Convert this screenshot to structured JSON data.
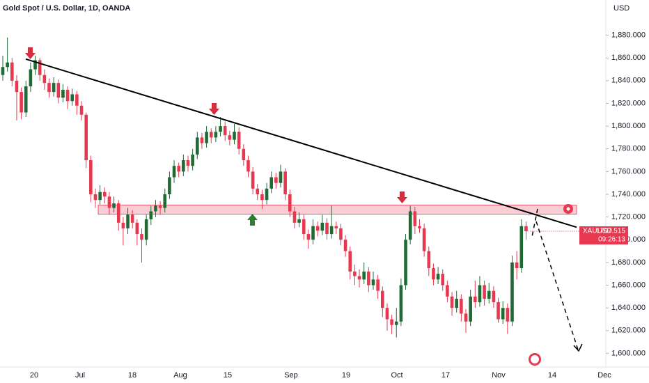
{
  "chart_data": {
    "type": "candlestick",
    "title": "Gold Spot / U.S. Dollar, 1D, OANDA",
    "y_axis_label": "USD",
    "series": [
      {
        "name": "XAUUSD",
        "up_color": "#1e6b34",
        "down_color": "#e8384f",
        "values": [
          [
            1845,
            1862,
            1840,
            1852
          ],
          [
            1852,
            1878,
            1848,
            1856
          ],
          [
            1856,
            1860,
            1835,
            1840
          ],
          [
            1840,
            1845,
            1805,
            1830
          ],
          [
            1830,
            1834,
            1806,
            1812
          ],
          [
            1812,
            1840,
            1808,
            1835
          ],
          [
            1835,
            1856,
            1830,
            1850
          ],
          [
            1850,
            1862,
            1845,
            1858
          ],
          [
            1858,
            1860,
            1840,
            1845
          ],
          [
            1845,
            1850,
            1832,
            1838
          ],
          [
            1838,
            1842,
            1825,
            1830
          ],
          [
            1830,
            1843,
            1826,
            1838
          ],
          [
            1838,
            1841,
            1820,
            1825
          ],
          [
            1825,
            1837,
            1821,
            1832
          ],
          [
            1832,
            1835,
            1815,
            1822
          ],
          [
            1822,
            1833,
            1818,
            1828
          ],
          [
            1828,
            1831,
            1810,
            1818
          ],
          [
            1818,
            1822,
            1805,
            1810
          ],
          [
            1810,
            1812,
            1763,
            1770
          ],
          [
            1770,
            1774,
            1733,
            1740
          ],
          [
            1740,
            1745,
            1728,
            1735
          ],
          [
            1735,
            1748,
            1731,
            1742
          ],
          [
            1742,
            1746,
            1732,
            1738
          ],
          [
            1738,
            1742,
            1722,
            1728
          ],
          [
            1728,
            1738,
            1724,
            1732
          ],
          [
            1732,
            1735,
            1708,
            1715
          ],
          [
            1715,
            1720,
            1695,
            1710
          ],
          [
            1710,
            1728,
            1705,
            1722
          ],
          [
            1722,
            1726,
            1710,
            1715
          ],
          [
            1715,
            1718,
            1695,
            1705
          ],
          [
            1705,
            1710,
            1680,
            1700
          ],
          [
            1700,
            1722,
            1695,
            1718
          ],
          [
            1718,
            1730,
            1713,
            1725
          ],
          [
            1725,
            1735,
            1720,
            1730
          ],
          [
            1730,
            1734,
            1722,
            1728
          ],
          [
            1728,
            1745,
            1724,
            1740
          ],
          [
            1740,
            1760,
            1736,
            1755
          ],
          [
            1755,
            1770,
            1750,
            1765
          ],
          [
            1765,
            1768,
            1755,
            1760
          ],
          [
            1760,
            1775,
            1756,
            1770
          ],
          [
            1770,
            1774,
            1760,
            1765
          ],
          [
            1765,
            1780,
            1761,
            1775
          ],
          [
            1775,
            1795,
            1771,
            1790
          ],
          [
            1790,
            1794,
            1780,
            1785
          ],
          [
            1785,
            1800,
            1781,
            1795
          ],
          [
            1795,
            1798,
            1785,
            1790
          ],
          [
            1790,
            1800,
            1786,
            1795
          ],
          [
            1795,
            1808,
            1791,
            1800
          ],
          [
            1800,
            1804,
            1787,
            1792
          ],
          [
            1792,
            1796,
            1783,
            1788
          ],
          [
            1788,
            1802,
            1784,
            1795
          ],
          [
            1795,
            1799,
            1775,
            1780
          ],
          [
            1780,
            1784,
            1765,
            1770
          ],
          [
            1770,
            1774,
            1755,
            1760
          ],
          [
            1760,
            1764,
            1740,
            1745
          ],
          [
            1745,
            1749,
            1735,
            1740
          ],
          [
            1740,
            1744,
            1727,
            1735
          ],
          [
            1735,
            1750,
            1731,
            1745
          ],
          [
            1745,
            1760,
            1741,
            1755
          ],
          [
            1755,
            1759,
            1745,
            1750
          ],
          [
            1750,
            1766,
            1746,
            1760
          ],
          [
            1760,
            1763,
            1735,
            1740
          ],
          [
            1740,
            1744,
            1720,
            1725
          ],
          [
            1725,
            1729,
            1710,
            1715
          ],
          [
            1715,
            1724,
            1711,
            1718
          ],
          [
            1718,
            1722,
            1700,
            1705
          ],
          [
            1705,
            1709,
            1692,
            1700
          ],
          [
            1700,
            1718,
            1696,
            1712
          ],
          [
            1712,
            1716,
            1703,
            1708
          ],
          [
            1708,
            1722,
            1704,
            1715
          ],
          [
            1715,
            1719,
            1700,
            1705
          ],
          [
            1705,
            1730,
            1701,
            1712
          ],
          [
            1712,
            1716,
            1705,
            1710
          ],
          [
            1710,
            1714,
            1695,
            1700
          ],
          [
            1700,
            1704,
            1685,
            1690
          ],
          [
            1690,
            1694,
            1665,
            1672
          ],
          [
            1672,
            1678,
            1660,
            1668
          ],
          [
            1668,
            1674,
            1658,
            1665
          ],
          [
            1665,
            1680,
            1661,
            1672
          ],
          [
            1672,
            1676,
            1654,
            1660
          ],
          [
            1660,
            1672,
            1656,
            1665
          ],
          [
            1665,
            1669,
            1648,
            1655
          ],
          [
            1655,
            1659,
            1632,
            1640
          ],
          [
            1640,
            1644,
            1620,
            1630
          ],
          [
            1630,
            1634,
            1617,
            1625
          ],
          [
            1625,
            1640,
            1614,
            1628
          ],
          [
            1628,
            1666,
            1624,
            1660
          ],
          [
            1660,
            1705,
            1656,
            1700
          ],
          [
            1700,
            1730,
            1696,
            1725
          ],
          [
            1725,
            1729,
            1705,
            1712
          ],
          [
            1712,
            1718,
            1706,
            1710
          ],
          [
            1710,
            1714,
            1685,
            1690
          ],
          [
            1690,
            1694,
            1668,
            1675
          ],
          [
            1675,
            1679,
            1660,
            1665
          ],
          [
            1665,
            1676,
            1661,
            1670
          ],
          [
            1670,
            1674,
            1655,
            1660
          ],
          [
            1660,
            1664,
            1645,
            1650
          ],
          [
            1650,
            1654,
            1633,
            1640
          ],
          [
            1640,
            1655,
            1636,
            1648
          ],
          [
            1648,
            1652,
            1628,
            1635
          ],
          [
            1635,
            1639,
            1618,
            1628
          ],
          [
            1628,
            1656,
            1624,
            1650
          ],
          [
            1650,
            1664,
            1640,
            1645
          ],
          [
            1645,
            1668,
            1641,
            1660
          ],
          [
            1660,
            1664,
            1642,
            1648
          ],
          [
            1648,
            1662,
            1644,
            1655
          ],
          [
            1655,
            1659,
            1640,
            1645
          ],
          [
            1645,
            1649,
            1627,
            1630
          ],
          [
            1630,
            1646,
            1626,
            1640
          ],
          [
            1640,
            1644,
            1617,
            1628
          ],
          [
            1628,
            1686,
            1624,
            1680
          ],
          [
            1680,
            1690,
            1665,
            1675
          ],
          [
            1675,
            1718,
            1671,
            1712
          ],
          [
            1712,
            1716,
            1700,
            1707.515
          ]
        ]
      }
    ],
    "countdown": "09:26:13",
    "ylim": [
      1588,
      1911
    ],
    "yticks": [
      {
        "value": 1600,
        "label": "1,600.000"
      },
      {
        "value": 1620,
        "label": "1,620.000"
      },
      {
        "value": 1640,
        "label": "1,640.000"
      },
      {
        "value": 1660,
        "label": "1,660.000"
      },
      {
        "value": 1680,
        "label": "1,680.000"
      },
      {
        "value": 1700,
        "label": "1,700.000"
      },
      {
        "value": 1720,
        "label": "1,720.000"
      },
      {
        "value": 1740,
        "label": "1,740.000"
      },
      {
        "value": 1760,
        "label": "1,760.000"
      },
      {
        "value": 1780,
        "label": "1,780.000"
      },
      {
        "value": 1800,
        "label": "1,800.000"
      },
      {
        "value": 1820,
        "label": "1,820.000"
      },
      {
        "value": 1840,
        "label": "1,840.000"
      },
      {
        "value": 1860,
        "label": "1,860.000"
      },
      {
        "value": 1880,
        "label": "1,880.000"
      }
    ],
    "xtick_labels": [
      "20",
      "Jul",
      "18",
      "Aug",
      "15",
      "Sep",
      "19",
      "Oct",
      "17",
      "Nov",
      "14",
      "Dec"
    ],
    "trendline": [
      1859,
      1711
    ],
    "zone": [
      1722.5,
      1730.5
    ]
  }
}
